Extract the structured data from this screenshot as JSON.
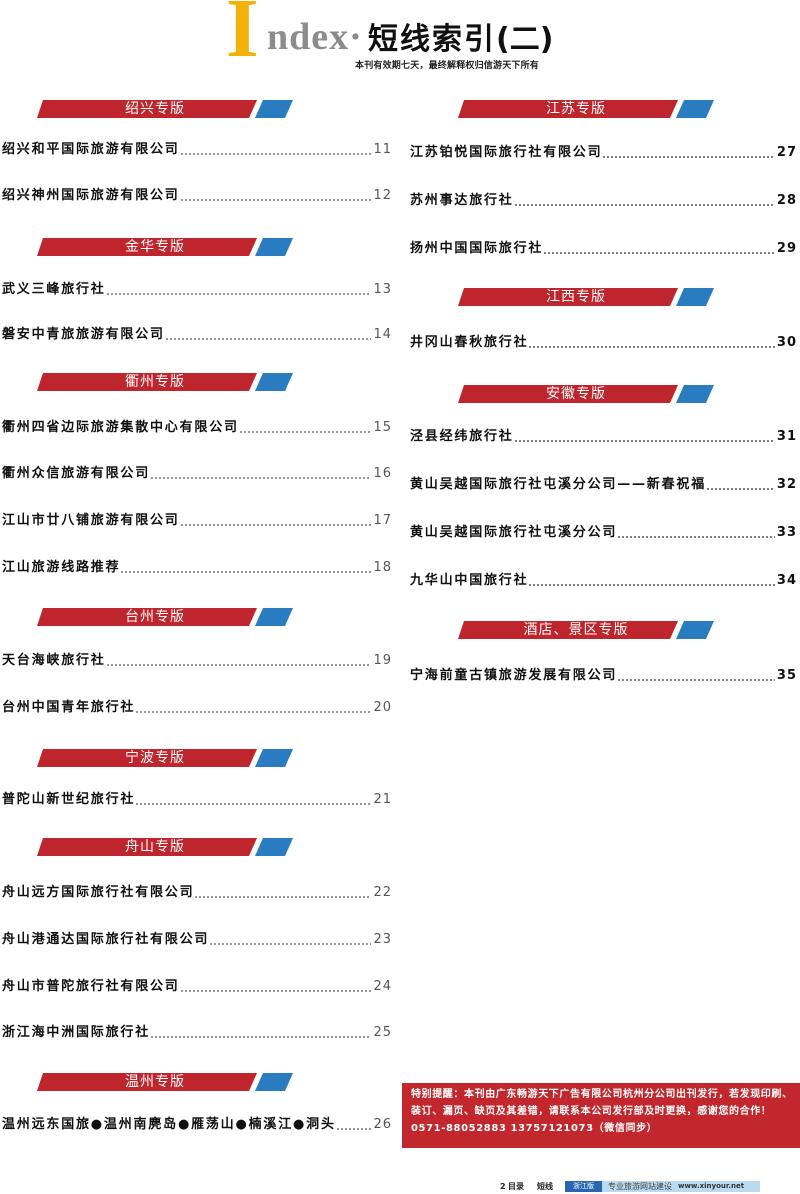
{
  "header": {
    "title_initial": "I",
    "title_latin": "ndex·",
    "title_cn": "短线索引",
    "title_suffix": "(二)",
    "subtitle": "本刊有效期七天，最终解释权归信游天下所有"
  },
  "colors": {
    "banner_red": "#bf252c",
    "banner_blue": "#2a7cc0",
    "title_yellow": "#f3b20a",
    "title_gray": "#8c8c8c",
    "notice_red": "#c1272d",
    "footer_blue": "#2a66b0",
    "footer_light": "#b9daf0"
  },
  "left_sections": [
    {
      "title": "绍兴专版",
      "entries": [
        {
          "name": "绍兴和平国际旅游有限公司",
          "page": "11"
        },
        {
          "name": "绍兴神州国际旅游有限公司",
          "page": "12"
        }
      ]
    },
    {
      "title": "金华专版",
      "entries": [
        {
          "name": "武义三峰旅行社",
          "page": "13"
        },
        {
          "name": "磐安中青旅旅游有限公司",
          "page": "14"
        }
      ]
    },
    {
      "title": "衢州专版",
      "entries": [
        {
          "name": "衢州四省边际旅游集散中心有限公司",
          "page": "15"
        },
        {
          "name": "衢州众信旅游有限公司",
          "page": "16"
        },
        {
          "name": "江山市廿八铺旅游有限公司",
          "page": "17"
        },
        {
          "name": "江山旅游线路推荐",
          "page": "18"
        }
      ]
    },
    {
      "title": "台州专版",
      "entries": [
        {
          "name": "天台海峡旅行社",
          "page": "19"
        },
        {
          "name": "台州中国青年旅行社",
          "page": "20"
        }
      ]
    },
    {
      "title": "宁波专版",
      "entries": [
        {
          "name": "普陀山新世纪旅行社",
          "page": "21"
        }
      ]
    },
    {
      "title": "舟山专版",
      "entries": [
        {
          "name": "舟山远方国际旅行社有限公司",
          "page": "22"
        },
        {
          "name": "舟山港通达国际旅行社有限公司",
          "page": "23"
        },
        {
          "name": "舟山市普陀旅行社有限公司",
          "page": "24"
        },
        {
          "name": "浙江海中洲国际旅行社",
          "page": "25"
        }
      ]
    },
    {
      "title": "温州专版",
      "entries": [
        {
          "name": "温州远东国旅●温州南麂岛●雁荡山●楠溪江●洞头",
          "page": "26"
        }
      ]
    }
  ],
  "right_sections": [
    {
      "title": "江苏专版",
      "entries": [
        {
          "name": "江苏铂悦国际旅行社有限公司",
          "page": "27"
        },
        {
          "name": "苏州事达旅行社",
          "page": "28"
        },
        {
          "name": "扬州中国国际旅行社",
          "page": "29"
        }
      ]
    },
    {
      "title": "江西专版",
      "entries": [
        {
          "name": "井冈山春秋旅行社",
          "page": "30"
        }
      ]
    },
    {
      "title": "安徽专版",
      "entries": [
        {
          "name": "泾县经纬旅行社",
          "page": "31"
        },
        {
          "name": "黄山吴越国际旅行社屯溪分公司——新春祝福",
          "page": "32"
        },
        {
          "name": "黄山吴越国际旅行社屯溪分公司",
          "page": "33"
        },
        {
          "name": "九华山中国旅行社",
          "page": "34"
        }
      ]
    },
    {
      "title": "酒店、景区专版",
      "entries": [
        {
          "name": "宁海前童古镇旅游发展有限公司",
          "page": "35"
        }
      ]
    }
  ],
  "notice": {
    "lines": [
      "特别提醒：本刊由广东畅游天下广告有限公司杭州分公司出刊发行，若发现印刷、",
      "装订、漏页、缺页及其差错，请联系本公司发行部及时更换，感谢您的合作！",
      "0571-88052883 13757121073（微信同步）"
    ]
  },
  "footer": {
    "page_number": "2",
    "section": "目录",
    "category": "短线",
    "edition": "浙江版",
    "slogan": "专业旅游网站建设",
    "url": "www.xinyour.net"
  }
}
